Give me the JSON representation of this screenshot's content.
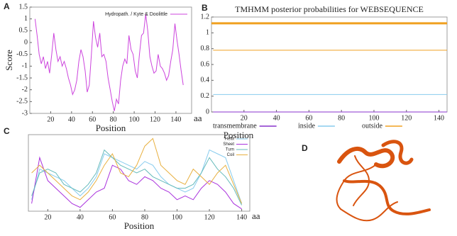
{
  "chart_data": [
    {
      "type": "line",
      "label": "A",
      "ylabel": "Score",
      "xlabel": "Position",
      "x_unit": "aa",
      "xlim": [
        0,
        155
      ],
      "xticks": [
        20,
        40,
        60,
        80,
        100,
        120,
        140
      ],
      "ylim": [
        -3,
        1.5
      ],
      "yticks": [
        -3,
        -2.5,
        -2,
        -1.5,
        -1,
        -0.5,
        0,
        0.5,
        1,
        1.5
      ],
      "legend": "top-right",
      "x": [
        5,
        7,
        9,
        11,
        13,
        15,
        17,
        19,
        21,
        23,
        25,
        27,
        29,
        31,
        33,
        35,
        37,
        39,
        41,
        43,
        45,
        47,
        49,
        51,
        53,
        55,
        57,
        59,
        61,
        63,
        65,
        67,
        69,
        71,
        73,
        75,
        77,
        79,
        81,
        83,
        85,
        87,
        89,
        91,
        93,
        95,
        97,
        99,
        101,
        103,
        105,
        107,
        109,
        111,
        113,
        115,
        117,
        119,
        121,
        123,
        125,
        127,
        129,
        131,
        133,
        135,
        137,
        139,
        141,
        143,
        145,
        147
      ],
      "series": [
        {
          "name": "Hydropath. / Kyte & Doolittle",
          "color": "#cc44dd",
          "values": [
            1.0,
            0.3,
            -0.5,
            -0.9,
            -0.6,
            -1.1,
            -0.8,
            -1.3,
            -0.5,
            0.4,
            -0.3,
            -0.8,
            -0.6,
            -1.0,
            -0.8,
            -1.1,
            -1.5,
            -1.8,
            -2.2,
            -2.0,
            -1.6,
            -0.8,
            -0.3,
            -0.6,
            -1.2,
            -2.1,
            -1.8,
            -0.5,
            0.9,
            0.2,
            -0.2,
            0.4,
            -0.6,
            -0.5,
            -0.8,
            -1.5,
            -2.0,
            -2.5,
            -2.9,
            -2.4,
            -2.6,
            -1.6,
            -1.0,
            -0.7,
            -0.9,
            0.3,
            -0.3,
            -0.5,
            -1.2,
            -1.5,
            -0.5,
            0.3,
            0.4,
            1.2,
            0.5,
            -0.6,
            -1.0,
            -1.3,
            -1.2,
            -0.5,
            -1.0,
            -1.1,
            -1.3,
            -1.6,
            -1.4,
            -0.8,
            -0.3,
            0.8,
            0.1,
            -0.5,
            -1.2,
            -1.8
          ]
        }
      ]
    },
    {
      "type": "line",
      "label": "B",
      "title": "TMHMM posterior probabilities for WEBSEQUENCE",
      "xlabel": "Position",
      "xlim": [
        0,
        145
      ],
      "xticks": [
        20,
        40,
        60,
        80,
        100,
        120,
        140
      ],
      "ylim": [
        0,
        1.2
      ],
      "yticks": [
        0,
        0.2,
        0.4,
        0.6,
        0.8,
        1,
        1.2
      ],
      "legend": "bottom",
      "band": {
        "value": 1.12,
        "color": "#f0a020"
      },
      "x": [
        1,
        145
      ],
      "series": [
        {
          "name": "transmembrane",
          "color": "#8833cc",
          "values": [
            0,
            0
          ]
        },
        {
          "name": "inside",
          "color": "#88ccee",
          "values": [
            0.22,
            0.22
          ]
        },
        {
          "name": "outside",
          "color": "#f0a020",
          "values": [
            0.78,
            0.78
          ]
        }
      ]
    },
    {
      "type": "line",
      "label": "C",
      "xlabel": "Position",
      "x_unit": "aa",
      "xlim": [
        8,
        145
      ],
      "xticks": [
        20,
        40,
        60,
        80,
        100,
        120,
        140
      ],
      "ylim": [
        0,
        1
      ],
      "legend": "top-right",
      "x": [
        10,
        15,
        20,
        25,
        30,
        35,
        40,
        45,
        50,
        55,
        60,
        65,
        70,
        75,
        80,
        85,
        90,
        95,
        100,
        105,
        110,
        115,
        120,
        125,
        130,
        135,
        140
      ],
      "series": [
        {
          "name": "Helix",
          "color": "#88ccee",
          "values": [
            0.15,
            0.55,
            0.5,
            0.45,
            0.4,
            0.3,
            0.2,
            0.3,
            0.45,
            0.75,
            0.7,
            0.65,
            0.6,
            0.55,
            0.65,
            0.6,
            0.45,
            0.35,
            0.3,
            0.25,
            0.3,
            0.5,
            0.8,
            0.75,
            0.7,
            0.4,
            0.1
          ]
        },
        {
          "name": "Sheet",
          "color": "#aa33dd",
          "values": [
            0.1,
            0.7,
            0.4,
            0.3,
            0.2,
            0.1,
            0.05,
            0.15,
            0.25,
            0.3,
            0.6,
            0.55,
            0.4,
            0.35,
            0.45,
            0.4,
            0.3,
            0.25,
            0.15,
            0.2,
            0.15,
            0.3,
            0.4,
            0.35,
            0.25,
            0.1,
            0.03
          ]
        },
        {
          "name": "Turn",
          "color": "#66bbbb",
          "values": [
            0.2,
            0.5,
            0.55,
            0.5,
            0.35,
            0.3,
            0.25,
            0.35,
            0.5,
            0.8,
            0.7,
            0.6,
            0.55,
            0.5,
            0.55,
            0.45,
            0.4,
            0.35,
            0.3,
            0.3,
            0.35,
            0.5,
            0.7,
            0.55,
            0.45,
            0.3,
            0.08
          ]
        },
        {
          "name": "Coil",
          "color": "#e8b040",
          "values": [
            0.5,
            0.6,
            0.5,
            0.4,
            0.3,
            0.2,
            0.15,
            0.25,
            0.4,
            0.6,
            0.75,
            0.5,
            0.45,
            0.6,
            0.85,
            0.95,
            0.6,
            0.5,
            0.4,
            0.35,
            0.55,
            0.45,
            0.35,
            0.5,
            0.6,
            0.35,
            0.1
          ]
        }
      ]
    },
    {
      "type": "image",
      "label": "D"
    }
  ]
}
